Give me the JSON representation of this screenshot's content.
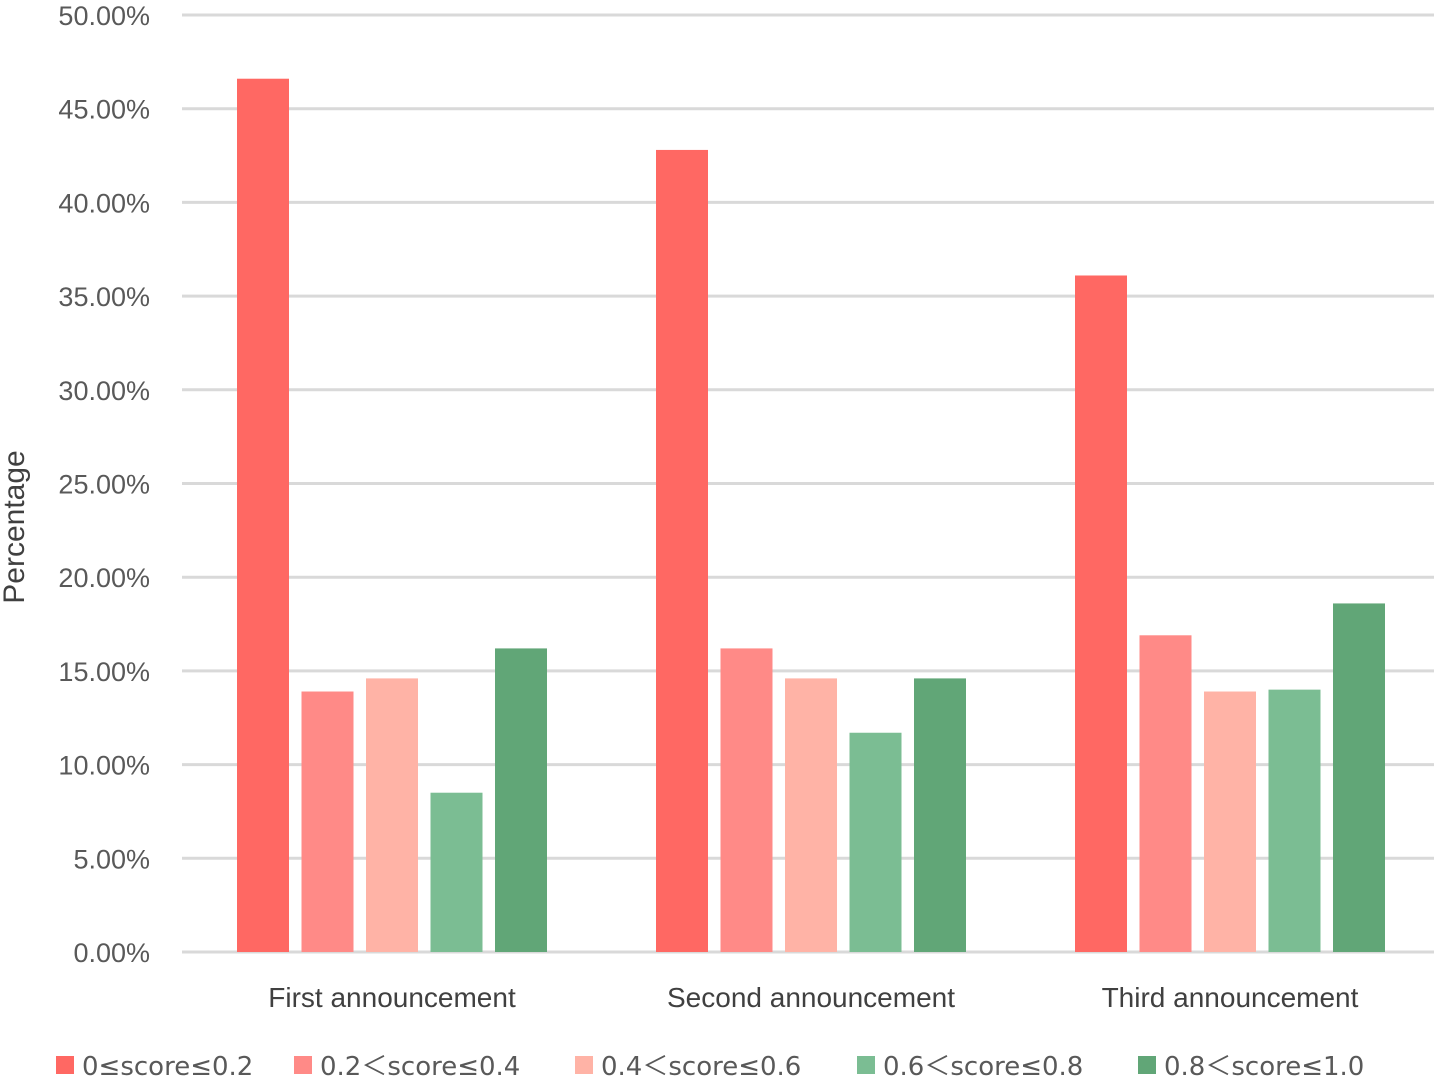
{
  "chart_data": {
    "type": "bar",
    "title": "",
    "xlabel": "",
    "ylabel": "Percentage",
    "ylim": [
      0,
      50
    ],
    "yticks": [
      "0.00%",
      "5.00%",
      "10.00%",
      "15.00%",
      "20.00%",
      "25.00%",
      "30.00%",
      "35.00%",
      "40.00%",
      "45.00%",
      "50.00%"
    ],
    "categories": [
      "First announcement",
      "Second announcement",
      "Third announcement"
    ],
    "series": [
      {
        "name": "0≤score≤0.2",
        "color": "#ff6863",
        "values": [
          46.6,
          42.8,
          36.1
        ]
      },
      {
        "name": "0.2＜score≤0.4",
        "color": "#ff8a87",
        "values": [
          13.9,
          16.2,
          16.9
        ]
      },
      {
        "name": "0.4＜score≤0.6",
        "color": "#ffb3a6",
        "values": [
          14.6,
          14.6,
          13.9
        ]
      },
      {
        "name": "0.6＜score≤0.8",
        "color": "#7bbd93",
        "values": [
          8.5,
          11.7,
          14.0
        ]
      },
      {
        "name": "0.8＜score≤1.0",
        "color": "#61a677",
        "values": [
          16.2,
          14.6,
          18.6
        ]
      }
    ],
    "grid": true,
    "legend_position": "bottom"
  }
}
